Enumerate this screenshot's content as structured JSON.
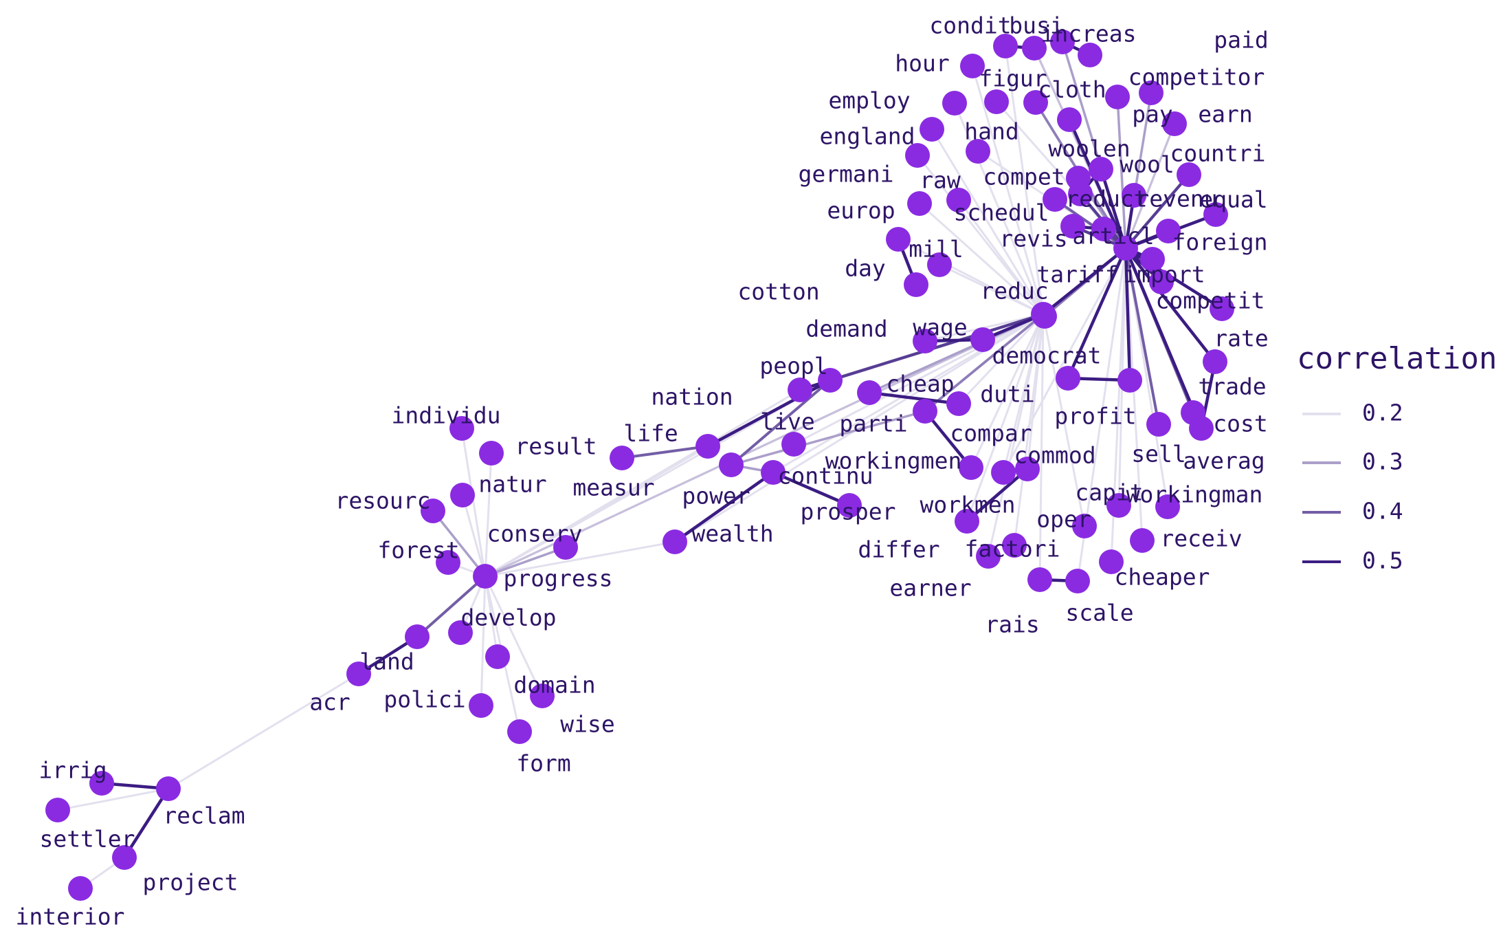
{
  "chart_data": {
    "type": "network",
    "legend_title": "correlation",
    "legend_levels": [
      0.2,
      0.3,
      0.4,
      0.5
    ],
    "legend_placement": "right",
    "colors": {
      "node": "#8a2be2",
      "edge_dark": "#3b1c82",
      "edge_light": "#e3e0ee",
      "text": "#2d1466"
    },
    "nodes": [
      "condit",
      "busi",
      "increas",
      "paid",
      "hour",
      "figur",
      "cloth",
      "competitor",
      "employ",
      "pay",
      "earn",
      "england",
      "hand",
      "woolen",
      "countri",
      "germani",
      "raw",
      "compet",
      "wool",
      "europ",
      "schedul",
      "reduct",
      "revenu",
      "equal",
      "revis",
      "articl",
      "foreign",
      "mill",
      "day",
      "tariff",
      "import",
      "cotton",
      "reduc",
      "competit",
      "demand",
      "wage",
      "rate",
      "democrat",
      "peopl",
      "cheap",
      "trade",
      "nation",
      "duti",
      "profit",
      "live",
      "parti",
      "cost",
      "life",
      "compar",
      "workingmen",
      "sell",
      "averag",
      "commod",
      "individu",
      "result",
      "measur",
      "continu",
      "power",
      "natur",
      "workingman",
      "resourc",
      "prosper",
      "capit",
      "workmen",
      "oper",
      "conserv",
      "wealth",
      "receiv",
      "differ",
      "factori",
      "forest",
      "progress",
      "cheaper",
      "earner",
      "scale",
      "rais",
      "develop",
      "land",
      "domain",
      "acr",
      "polici",
      "wise",
      "form",
      "irrig",
      "reclam",
      "settler",
      "project",
      "interior"
    ],
    "edges": [
      [
        "tariff",
        "import",
        0.5
      ],
      [
        "tariff",
        "competit",
        0.5
      ],
      [
        "tariff",
        "revenu",
        0.5
      ],
      [
        "tariff",
        "foreign",
        0.5
      ],
      [
        "tariff",
        "rate",
        0.5
      ],
      [
        "tariff",
        "trade",
        0.5
      ],
      [
        "tariff",
        "cost",
        0.5
      ],
      [
        "tariff",
        "profit",
        0.5
      ],
      [
        "tariff",
        "duti",
        0.5
      ],
      [
        "tariff",
        "equal",
        0.5
      ],
      [
        "tariff",
        "countri",
        0.45
      ],
      [
        "tariff",
        "reduct",
        0.45
      ],
      [
        "tariff",
        "schedul",
        0.4
      ],
      [
        "tariff",
        "wool",
        0.5
      ],
      [
        "tariff",
        "woolen",
        0.5
      ],
      [
        "tariff",
        "cloth",
        0.35
      ],
      [
        "tariff",
        "articl",
        0.45
      ],
      [
        "tariff",
        "revis",
        0.45
      ],
      [
        "tariff",
        "reduc",
        0.35
      ],
      [
        "tariff",
        "democrat",
        0.5
      ],
      [
        "tariff",
        "compet",
        0.3
      ],
      [
        "tariff",
        "competitor",
        0.3
      ],
      [
        "tariff",
        "increas",
        0.3
      ],
      [
        "tariff",
        "busi",
        0.25
      ],
      [
        "tariff",
        "figur",
        0.2
      ],
      [
        "tariff",
        "hand",
        0.2
      ],
      [
        "tariff",
        "pay",
        0.3
      ],
      [
        "tariff",
        "sell",
        0.4
      ],
      [
        "tariff",
        "averag",
        0.4
      ],
      [
        "tariff",
        "commod",
        0.2
      ],
      [
        "tariff",
        "capit",
        0.2
      ],
      [
        "tariff",
        "workingman",
        0.2
      ],
      [
        "tariff",
        "receiv",
        0.2
      ],
      [
        "tariff",
        "cheaper",
        0.2
      ],
      [
        "tariff",
        "scale",
        0.2
      ],
      [
        "tariff",
        "earn",
        0.25
      ],
      [
        "democrat",
        "wage",
        0.5
      ],
      [
        "democrat",
        "peopl",
        0.4
      ],
      [
        "democrat",
        "nation",
        0.45
      ],
      [
        "democrat",
        "parti",
        0.35
      ],
      [
        "democrat",
        "cheap",
        0.3
      ],
      [
        "democrat",
        "employ",
        0.2
      ],
      [
        "democrat",
        "england",
        0.2
      ],
      [
        "democrat",
        "germani",
        0.2
      ],
      [
        "democrat",
        "europ",
        0.2
      ],
      [
        "democrat",
        "raw",
        0.2
      ],
      [
        "democrat",
        "mill",
        0.2
      ],
      [
        "democrat",
        "day",
        0.2
      ],
      [
        "democrat",
        "hour",
        0.2
      ],
      [
        "democrat",
        "condit",
        0.2
      ],
      [
        "democrat",
        "compar",
        0.2
      ],
      [
        "democrat",
        "workingmen",
        0.2
      ],
      [
        "democrat",
        "workmen",
        0.2
      ],
      [
        "democrat",
        "oper",
        0.2
      ],
      [
        "democrat",
        "factori",
        0.2
      ],
      [
        "democrat",
        "rais",
        0.2
      ],
      [
        "democrat",
        "earner",
        0.2
      ],
      [
        "democrat",
        "continu",
        0.2
      ],
      [
        "democrat",
        "live",
        0.2
      ],
      [
        "democrat",
        "progress",
        0.25
      ],
      [
        "democrat",
        "commod",
        0.2
      ],
      [
        "democrat",
        "differ",
        0.2
      ],
      [
        "democrat",
        "wealth",
        0.2
      ],
      [
        "democrat",
        "demand",
        0.2
      ],
      [
        "condit",
        "busi",
        0.5
      ],
      [
        "increas",
        "paid",
        0.5
      ],
      [
        "cotton",
        "mill",
        0.5
      ],
      [
        "demand",
        "wage",
        0.5
      ],
      [
        "cheap",
        "compar",
        0.5
      ],
      [
        "workingmen",
        "parti",
        0.5
      ],
      [
        "commod",
        "workmen",
        0.5
      ],
      [
        "differ",
        "workmen",
        0.5
      ],
      [
        "rais",
        "scale",
        0.5
      ],
      [
        "duti",
        "profit",
        0.5
      ],
      [
        "trade",
        "cost",
        0.5
      ],
      [
        "wool",
        "reduct",
        0.5
      ],
      [
        "compet",
        "reduct",
        0.5
      ],
      [
        "revis",
        "articl",
        0.5
      ],
      [
        "nation",
        "peopl",
        0.5
      ],
      [
        "nation",
        "life",
        0.5
      ],
      [
        "life",
        "measur",
        0.4
      ],
      [
        "nation",
        "power",
        0.4
      ],
      [
        "power",
        "continu",
        0.3
      ],
      [
        "continu",
        "prosper",
        0.5
      ],
      [
        "continu",
        "wealth",
        0.5
      ],
      [
        "parti",
        "power",
        0.3
      ],
      [
        "progress",
        "conserv",
        0.3
      ],
      [
        "progress",
        "resourc",
        0.3
      ],
      [
        "progress",
        "natur",
        0.2
      ],
      [
        "progress",
        "individu",
        0.2
      ],
      [
        "progress",
        "result",
        0.2
      ],
      [
        "progress",
        "forest",
        0.2
      ],
      [
        "progress",
        "develop",
        0.2
      ],
      [
        "progress",
        "land",
        0.4
      ],
      [
        "progress",
        "domain",
        0.2
      ],
      [
        "progress",
        "polici",
        0.2
      ],
      [
        "progress",
        "wise",
        0.2
      ],
      [
        "progress",
        "form",
        0.2
      ],
      [
        "progress",
        "wealth",
        0.2
      ],
      [
        "progress",
        "nation",
        0.2
      ],
      [
        "progress",
        "life",
        0.2
      ],
      [
        "progress",
        "peopl",
        0.2
      ],
      [
        "land",
        "acr",
        0.5
      ],
      [
        "acr",
        "reclam",
        0.2
      ],
      [
        "reclam",
        "irrig",
        0.5
      ],
      [
        "reclam",
        "settler",
        0.2
      ],
      [
        "reclam",
        "project",
        0.5
      ],
      [
        "project",
        "interior",
        0.2
      ]
    ]
  }
}
